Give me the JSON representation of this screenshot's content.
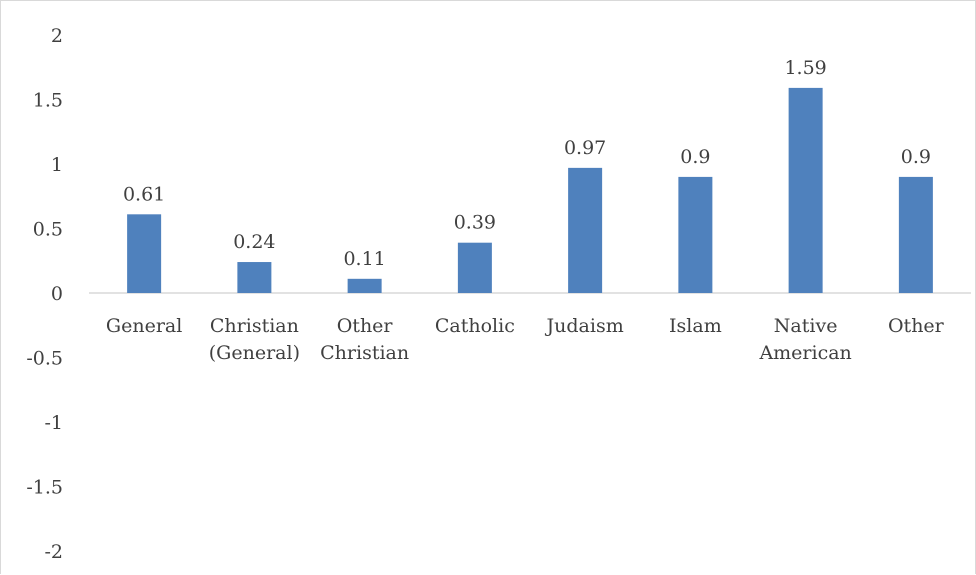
{
  "colors": {
    "bar": "#4f81bd",
    "axis": "#d9d9d9",
    "text": "#404040",
    "border": "#d9d9d9"
  },
  "chart_data": {
    "type": "bar",
    "title": "",
    "xlabel": "",
    "ylabel": "",
    "ylim": [
      -2,
      2
    ],
    "y_ticks": [
      "2",
      "1.5",
      "1",
      "0.5",
      "0",
      "-0.5",
      "-1",
      "-1.5",
      "-2"
    ],
    "categories": [
      [
        "General"
      ],
      [
        "Christian",
        "(General)"
      ],
      [
        "Other",
        "Christian"
      ],
      [
        "Catholic"
      ],
      [
        "Judaism"
      ],
      [
        "Islam"
      ],
      [
        "Native",
        "American"
      ],
      [
        "Other"
      ]
    ],
    "values": [
      0.61,
      0.24,
      0.11,
      0.39,
      0.97,
      0.9,
      1.59,
      0.9
    ],
    "data_labels": [
      "0.61",
      "0.24",
      "0.11",
      "0.39",
      "0.97",
      "0.9",
      "1.59",
      "0.9"
    ],
    "grid": false,
    "legend": "none"
  }
}
